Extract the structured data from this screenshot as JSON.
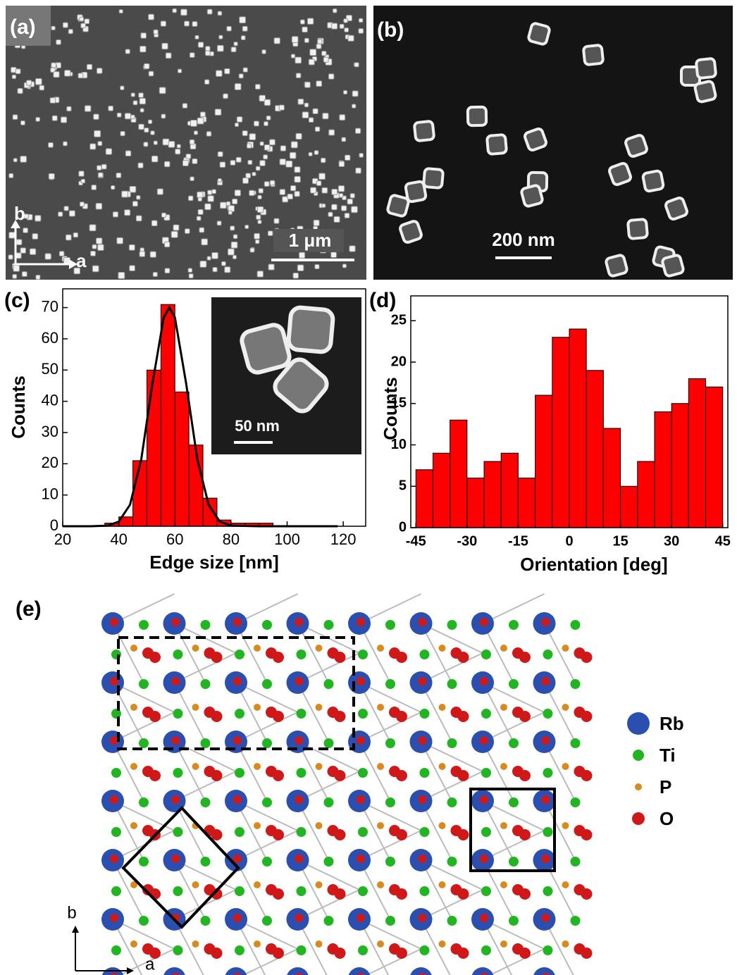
{
  "panels": {
    "a": {
      "label": "(a)",
      "scale_bar": "1 μm",
      "axis_b": "b",
      "axis_a": "a"
    },
    "b": {
      "label": "(b)",
      "scale_bar": "200 nm"
    },
    "c": {
      "label": "(c)",
      "inset_scale_bar": "50 nm"
    },
    "d": {
      "label": "(d)"
    },
    "e": {
      "label": "(e)",
      "axis_b": "b",
      "axis_a": "a",
      "legend": [
        {
          "name": "Rb",
          "color": "#2a4fb0"
        },
        {
          "name": "Ti",
          "color": "#22b522"
        },
        {
          "name": "P",
          "color": "#d98a1c"
        },
        {
          "name": "O",
          "color": "#d01818"
        }
      ]
    }
  },
  "chart_data": [
    {
      "type": "histogram",
      "x_label": "Edge size [nm]",
      "y_label": "Counts",
      "bins": [
        35,
        40,
        45,
        50,
        55,
        60,
        65,
        70,
        75,
        80,
        85,
        90,
        95
      ],
      "values": [
        1,
        3,
        21,
        50,
        71,
        43,
        26,
        9,
        2,
        1,
        1,
        1
      ],
      "color": "#ff0000",
      "xlim": [
        20,
        128
      ],
      "ylim": [
        0,
        76
      ],
      "xticks": [
        20,
        40,
        60,
        80,
        100,
        120
      ],
      "yticks": [
        0,
        10,
        20,
        30,
        40,
        50,
        60,
        70
      ],
      "fit": {
        "x": [
          20,
          30,
          36,
          40,
          44,
          48,
          52,
          56,
          58,
          60,
          64,
          68,
          72,
          76,
          80,
          90,
          100,
          118
        ],
        "values": [
          0,
          0,
          0.2,
          1.5,
          6.9,
          21.4,
          45.7,
          66.8,
          70,
          66.8,
          45.7,
          21.4,
          6.9,
          1.5,
          0.2,
          0,
          0,
          0
        ],
        "color": "#000000"
      }
    },
    {
      "type": "histogram",
      "x_label": "Orientation [deg]",
      "y_label": "Counts",
      "bins": [
        -45,
        -40,
        -35,
        -30,
        -25,
        -20,
        -15,
        -10,
        -5,
        0,
        5,
        10,
        15,
        20,
        25,
        30,
        35,
        40,
        45
      ],
      "values": [
        7,
        9,
        13,
        6,
        8,
        9,
        6,
        16,
        23,
        24,
        19,
        12,
        5,
        8,
        14,
        15,
        18,
        17
      ],
      "color": "#ff0000",
      "xlim": [
        -46.5,
        46.5
      ],
      "ylim": [
        0,
        28
      ],
      "xticks": [
        -45,
        -30,
        -15,
        0,
        15,
        30,
        45
      ],
      "yticks": [
        0,
        5,
        10,
        15,
        20,
        25
      ]
    }
  ]
}
